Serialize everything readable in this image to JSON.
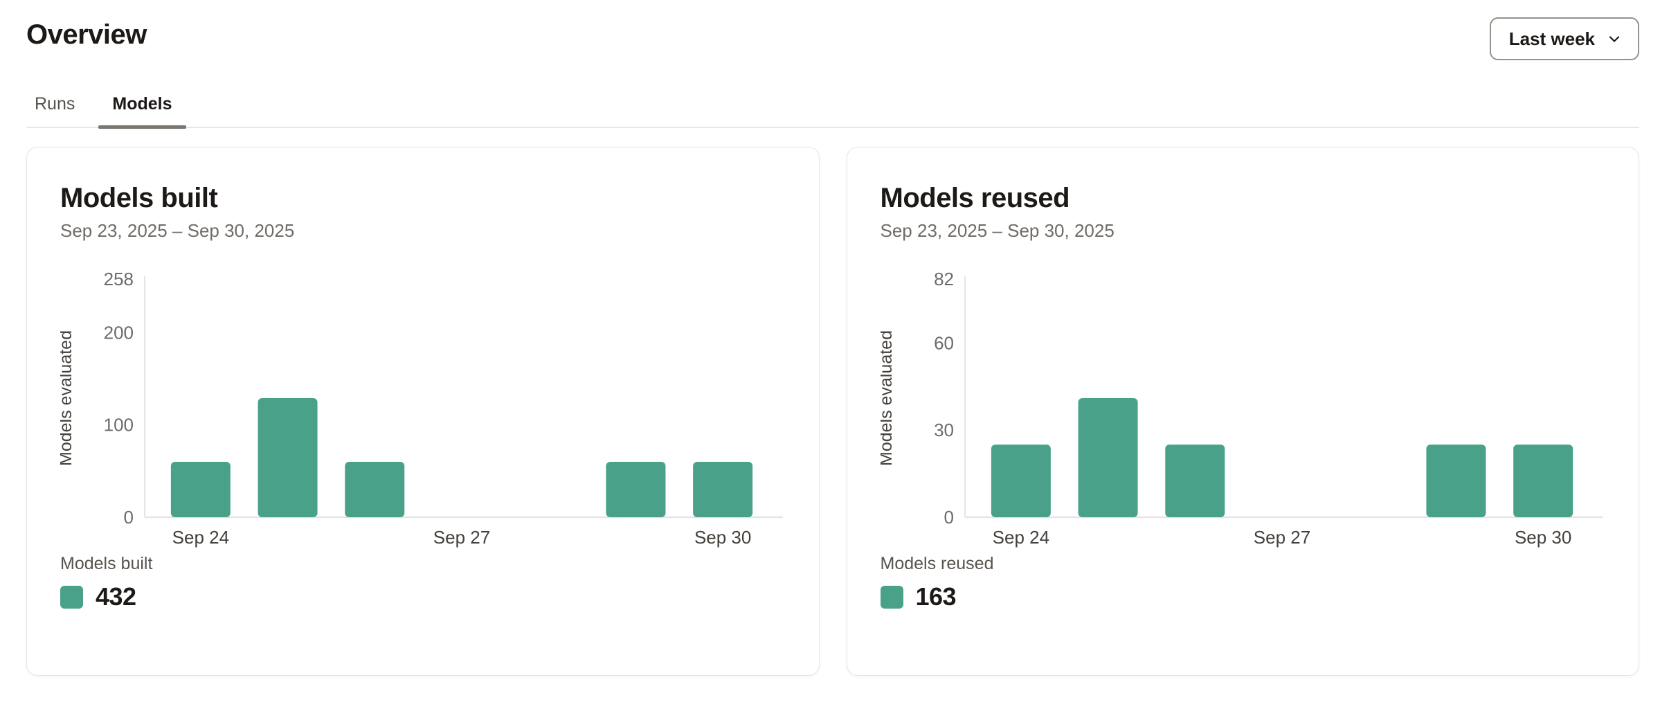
{
  "page": {
    "title": "Overview",
    "tabs": [
      {
        "label": "Runs",
        "active": false
      },
      {
        "label": "Models",
        "active": true
      }
    ],
    "range_selector": {
      "label": "Last week",
      "icon": "chevron-down-icon"
    }
  },
  "colors": {
    "accent": "#4aa18a",
    "axis_line": "#e7e5e4",
    "tick_text": "#6b6b6b",
    "axis_label_text": "#44403c",
    "divider": "#e9e7e4",
    "active_tab_underline": "#7c766f",
    "button_border": "#97918b"
  },
  "chart_data": [
    {
      "type": "bar",
      "title": "Models built",
      "subtitle": "Sep 23, 2025 – Sep 30, 2025",
      "ylabel": "Models evaluated",
      "xlabel": "",
      "categories": [
        "Sep 24",
        "Sep 25",
        "Sep 26",
        "Sep 27",
        "Sep 28",
        "Sep 29",
        "Sep 30"
      ],
      "values": [
        60,
        129,
        60,
        0,
        0,
        60,
        60
      ],
      "yticks": [
        0,
        100,
        200,
        258
      ],
      "ylim": [
        0,
        258
      ],
      "xticks_shown": [
        "Sep 24",
        "Sep 27",
        "Sep 30"
      ],
      "grid": false,
      "legend": {
        "position": "bottom-left",
        "label": "Models built",
        "total": "432"
      }
    },
    {
      "type": "bar",
      "title": "Models reused",
      "subtitle": "Sep 23, 2025 – Sep 30, 2025",
      "ylabel": "Models evaluated",
      "xlabel": "",
      "categories": [
        "Sep 24",
        "Sep 25",
        "Sep 26",
        "Sep 27",
        "Sep 28",
        "Sep 29",
        "Sep 30"
      ],
      "values": [
        25,
        41,
        25,
        0,
        0,
        25,
        25
      ],
      "yticks": [
        0,
        30,
        60,
        82
      ],
      "ylim": [
        0,
        82
      ],
      "xticks_shown": [
        "Sep 24",
        "Sep 27",
        "Sep 30"
      ],
      "grid": false,
      "legend": {
        "position": "bottom-left",
        "label": "Models reused",
        "total": "163"
      }
    }
  ]
}
